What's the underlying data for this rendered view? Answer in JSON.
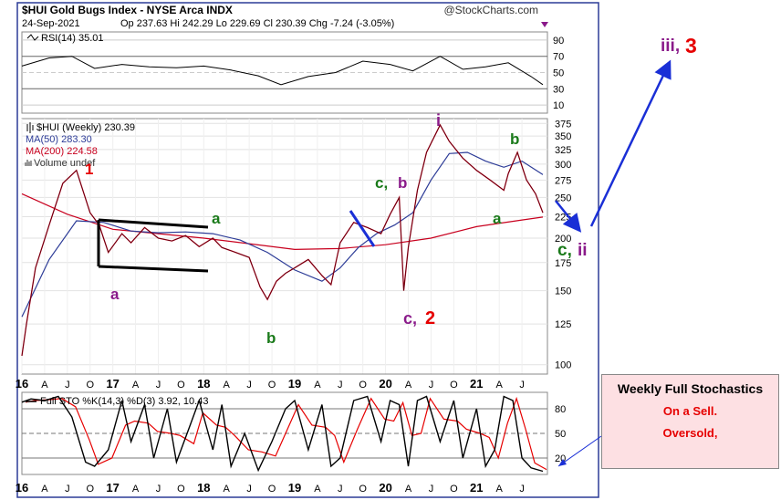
{
  "header": {
    "title": "$HUI Gold Bugs Index - NYSE Arca INDX",
    "date": "24-Sep-2021",
    "quote": "Op 237.63  Hi 242.29  Lo 229.69  Cl 230.39  Chg -7.24 (-3.05%)",
    "brand": "@StockCharts.com"
  },
  "chart_data": [
    {
      "type": "line",
      "name": "rsi-panel",
      "title": "RSI(14) 35.01",
      "ylim": [
        0,
        100
      ],
      "yticks": [
        "90",
        "70",
        "50",
        "30",
        "10"
      ],
      "x": [
        2016.0,
        2016.3,
        2016.55,
        2016.8,
        2017.1,
        2017.4,
        2017.7,
        2018.0,
        2018.3,
        2018.6,
        2018.85,
        2019.15,
        2019.45,
        2019.75,
        2020.05,
        2020.3,
        2020.6,
        2020.85,
        2021.1,
        2021.35,
        2021.6,
        2021.73
      ],
      "values": [
        58,
        68,
        70,
        55,
        60,
        57,
        56,
        58,
        53,
        46,
        35,
        45,
        50,
        64,
        60,
        52,
        70,
        54,
        57,
        62,
        45,
        35
      ]
    },
    {
      "type": "line",
      "name": "price-panel",
      "title": "$HUI (Weekly) 230.39",
      "scale": "log",
      "ylim": [
        95,
        385
      ],
      "yticks": [
        "375",
        "350",
        "325",
        "300",
        "275",
        "250",
        "225",
        "200",
        "175",
        "150",
        "125",
        "100"
      ],
      "xticks": [
        "16",
        "A",
        "J",
        "O",
        "17",
        "A",
        "J",
        "O",
        "18",
        "A",
        "J",
        "O",
        "19",
        "A",
        "J",
        "O",
        "20",
        "A",
        "J",
        "O",
        "21",
        "A",
        "J"
      ],
      "series": [
        {
          "name": "$HUI (Weekly) 230.39",
          "color": "#c8001e",
          "x": [
            2016.0,
            2016.05,
            2016.15,
            2016.3,
            2016.45,
            2016.6,
            2016.75,
            2016.85,
            2016.95,
            2017.1,
            2017.2,
            2017.35,
            2017.5,
            2017.65,
            2017.8,
            2017.95,
            2018.1,
            2018.2,
            2018.35,
            2018.5,
            2018.62,
            2018.7,
            2018.8,
            2018.9,
            2019.0,
            2019.15,
            2019.3,
            2019.4,
            2019.5,
            2019.65,
            2019.8,
            2019.95,
            2020.05,
            2020.15,
            2020.2,
            2020.25,
            2020.35,
            2020.45,
            2020.6,
            2020.7,
            2020.85,
            2021.0,
            2021.15,
            2021.3,
            2021.35,
            2021.45,
            2021.55,
            2021.65,
            2021.73
          ],
          "values": [
            105,
            125,
            170,
            215,
            270,
            290,
            230,
            215,
            185,
            205,
            195,
            212,
            200,
            197,
            203,
            191,
            200,
            190,
            185,
            180,
            153,
            143,
            158,
            165,
            170,
            178,
            163,
            155,
            195,
            218,
            212,
            205,
            228,
            250,
            150,
            190,
            260,
            320,
            372,
            340,
            310,
            290,
            275,
            260,
            285,
            320,
            275,
            255,
            230
          ]
        },
        {
          "name": "MA(50) 283.30",
          "color": "#2c3b97",
          "x": [
            2016.0,
            2016.3,
            2016.6,
            2016.9,
            2017.2,
            2017.5,
            2017.8,
            2018.1,
            2018.4,
            2018.7,
            2019.0,
            2019.3,
            2019.5,
            2019.7,
            2019.9,
            2020.1,
            2020.3,
            2020.5,
            2020.7,
            2020.9,
            2021.1,
            2021.3,
            2021.5,
            2021.73
          ],
          "values": [
            130,
            178,
            220,
            218,
            208,
            206,
            207,
            205,
            198,
            185,
            168,
            158,
            170,
            190,
            205,
            215,
            230,
            275,
            318,
            320,
            305,
            295,
            305,
            283.3
          ]
        },
        {
          "name": "MA(200) 224.58",
          "color": "#c8001e",
          "x": [
            2016.0,
            2016.5,
            2017.0,
            2017.5,
            2018.0,
            2018.5,
            2019.0,
            2019.5,
            2020.0,
            2020.5,
            2021.0,
            2021.5,
            2021.73
          ],
          "values": [
            255,
            228,
            210,
            205,
            200,
            194,
            188,
            189,
            193,
            200,
            213,
            221,
            224.58
          ]
        }
      ],
      "legend": [
        "$HUI (Weekly) 230.39",
        "MA(50) 283.30",
        "MA(200) 224.58",
        "Volume undef"
      ],
      "annotations": [
        "1",
        "a",
        "a",
        "b",
        "c, b",
        "c,",
        "2",
        "i",
        "b",
        "a",
        "c,",
        "ii",
        "iii,",
        "3"
      ]
    },
    {
      "type": "line",
      "name": "stochastics-panel",
      "title": "Full STO %K(14,3) %D(3) 3.92, 10.43",
      "ylim": [
        0,
        100
      ],
      "yticks": [
        "80",
        "50",
        "20"
      ],
      "xticks": [
        "16",
        "A",
        "J",
        "O",
        "17",
        "A",
        "J",
        "O",
        "18",
        "A",
        "J",
        "O",
        "19",
        "A",
        "J",
        "O",
        "20",
        "A",
        "J",
        "O",
        "21",
        "A",
        "J"
      ],
      "x": [
        2016.0,
        2016.1,
        2016.25,
        2016.4,
        2016.55,
        2016.7,
        2016.8,
        2016.95,
        2017.1,
        2017.2,
        2017.35,
        2017.45,
        2017.6,
        2017.7,
        2017.85,
        2017.95,
        2018.1,
        2018.2,
        2018.3,
        2018.45,
        2018.6,
        2018.75,
        2018.9,
        2019.0,
        2019.15,
        2019.3,
        2019.4,
        2019.5,
        2019.65,
        2019.8,
        2019.95,
        2020.05,
        2020.15,
        2020.25,
        2020.35,
        2020.45,
        2020.6,
        2020.75,
        2020.85,
        2021.0,
        2021.1,
        2021.2,
        2021.3,
        2021.4,
        2021.5,
        2021.6,
        2021.73
      ],
      "values": [
        88,
        92,
        90,
        95,
        70,
        15,
        10,
        30,
        90,
        40,
        85,
        20,
        80,
        15,
        60,
        90,
        30,
        85,
        10,
        50,
        5,
        40,
        80,
        90,
        30,
        85,
        10,
        20,
        90,
        95,
        40,
        90,
        85,
        10,
        90,
        95,
        40,
        90,
        20,
        80,
        10,
        30,
        95,
        90,
        20,
        8,
        3.92
      ]
    }
  ],
  "wave_labels": {
    "w1": "1",
    "a_left": "a",
    "a_top": "a",
    "b_low": "b",
    "c_comma": "c,",
    "b_right": "b",
    "c2_c": "c,",
    "c2_2": "2",
    "i": "i",
    "b_top": "b",
    "a_right": "a",
    "cii_c": "c,",
    "cii_ii": "ii",
    "iii": "iii,",
    "three": "3"
  },
  "note": {
    "line1": "Weekly Full Stochastics",
    "line2": "On a Sell.",
    "line3": "Oversold,"
  },
  "colors": {
    "price": "#c8001e",
    "ma50": "#2c3b97",
    "ma200": "#c8001e",
    "wave_red": "#e60000",
    "wave_green": "#1a7a1a",
    "wave_purple": "#8a1a8a",
    "arrow": "#1a2fd6"
  }
}
